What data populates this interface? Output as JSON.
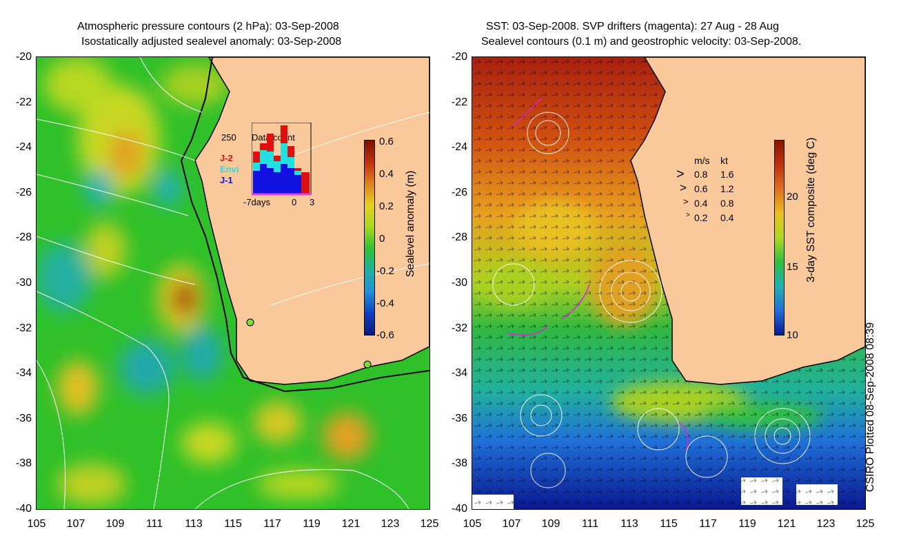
{
  "left_panel": {
    "title_line1": "Atmospheric pressure contours (2 hPa): 03-Sep-2008",
    "title_line2": "Isostatically adjusted sealevel anomaly: 03-Sep-2008",
    "colorbar_label": "Sealevel anomaly (m)",
    "colorbar_ticks": [
      "0.6",
      "0.4",
      "0.2",
      "0",
      "-0.2",
      "-0.4",
      "-0.6"
    ],
    "inset": {
      "max_label": "250",
      "title": "Data count",
      "legend": [
        "J-2",
        "Envi",
        "J-1"
      ],
      "x_labels": [
        "-7days",
        "0",
        "3"
      ]
    }
  },
  "right_panel": {
    "title_line1": "SST: 03-Sep-2008. SVP drifters (magenta): 27 Aug - 28 Aug",
    "title_line2": "Sealevel contours (0.1 m) and geostrophic velocity: 03-Sep-2008.",
    "colorbar_label": "3-day SST composite (deg C)",
    "colorbar_ticks": [
      "20",
      "15",
      "10"
    ],
    "velocity_legend": {
      "header_ms": "m/s",
      "header_kt": "kt",
      "rows": [
        {
          "ms": "0.8",
          "kt": "1.6"
        },
        {
          "ms": "0.6",
          "kt": "1.2"
        },
        {
          "ms": "0.4",
          "kt": "0.8"
        },
        {
          "ms": "0.2",
          "kt": "0.4"
        }
      ]
    }
  },
  "axes": {
    "y_ticks": [
      "-20",
      "-22",
      "-24",
      "-26",
      "-28",
      "-30",
      "-32",
      "-34",
      "-36",
      "-38",
      "-40"
    ],
    "x_ticks": [
      "105",
      "107",
      "109",
      "111",
      "113",
      "115",
      "117",
      "119",
      "121",
      "123",
      "125"
    ]
  },
  "credit": "CSIRO Plotted 08-Sep-2008 08:39",
  "colors": {
    "land": "#f9c99c",
    "anomaly_base": "#2fc02a",
    "sst_warm": "#b02010",
    "sst_cold": "#1030a0"
  }
}
